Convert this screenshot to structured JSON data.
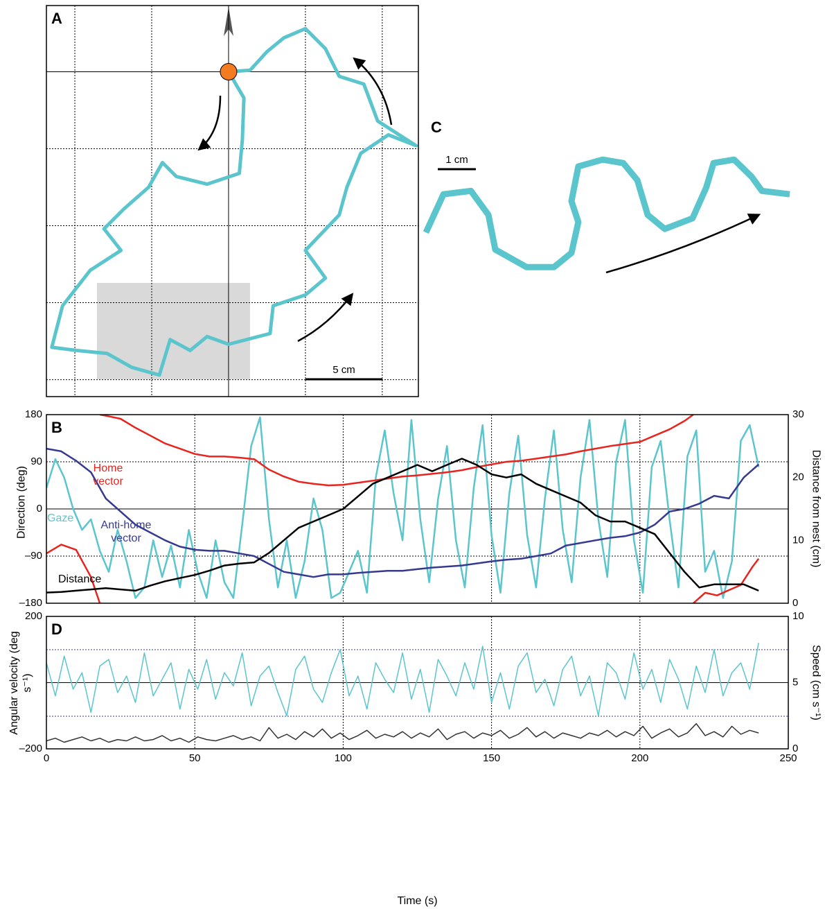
{
  "chart_data": [
    {
      "type": "path",
      "panel": "A",
      "color": "#5bc5cd",
      "xlim": [
        -11.85,
        12.35
      ],
      "ylim": [
        -21.1,
        4.3
      ],
      "xticks": [
        -10,
        -5,
        0,
        5,
        10
      ],
      "yticks": [
        -20,
        -15,
        -10,
        -5,
        0
      ],
      "x": [
        0,
        1.0,
        0.9,
        0.7,
        -1.4,
        -3.4,
        -4.3,
        -5.2,
        -6.8,
        -8.1,
        -7.0,
        -9.0,
        -10.8,
        -11.5,
        -9.9,
        -7.9,
        -6.3,
        -4.5,
        -3.8,
        -2.5,
        -1.4,
        0,
        2.7,
        2.9,
        5.0,
        6.3,
        5.0,
        7.2,
        7.7,
        8.6,
        10.4,
        12.2,
        9.7,
        8.8,
        7.2,
        6.3,
        5.0,
        3.6,
        2.5,
        1.4,
        0
      ],
      "values": [
        0,
        -1.7,
        -4.4,
        -6.6,
        -7.3,
        -6.8,
        -5.9,
        -7.5,
        -8.9,
        -10.2,
        -11.6,
        -12.9,
        -15.2,
        -17.9,
        -18.1,
        -18.3,
        -19.2,
        -19.7,
        -17.4,
        -18.1,
        -17.2,
        -17.7,
        -17.0,
        -15.2,
        -14.5,
        -13.4,
        -11.6,
        -9.3,
        -7.5,
        -5.3,
        -4.1,
        -4.8,
        -3.2,
        -0.8,
        -0.3,
        1.5,
        2.8,
        2.2,
        1.3,
        0.1,
        0
      ],
      "nest": {
        "x": 0,
        "y": 0,
        "color": "#f47b20"
      },
      "scale_bar": {
        "label": "5 cm",
        "length": 5
      }
    },
    {
      "type": "path",
      "panel": "C",
      "color": "#5bc5cd",
      "xlim": [
        0,
        9.73
      ],
      "ylim": [
        0,
        3.64
      ],
      "x": [
        0.09,
        0.55,
        1.27,
        1.73,
        1.91,
        2.73,
        3.45,
        3.91,
        4.09,
        3.91,
        4.09,
        4.73,
        5.27,
        5.64,
        5.91,
        6.36,
        7.09,
        7.45,
        7.64,
        8.18,
        8.64,
        8.91,
        9.64
      ],
      "values": [
        1.18,
        2.18,
        2.27,
        1.64,
        0.73,
        0.27,
        0.27,
        0.64,
        1.45,
        2.0,
        2.91,
        3.09,
        3.0,
        2.55,
        1.64,
        1.27,
        1.55,
        2.36,
        3.0,
        3.09,
        2.64,
        2.27,
        2.18
      ],
      "scale_bar": {
        "label": "1 cm",
        "length": 1
      }
    },
    {
      "type": "line",
      "panel": "B",
      "ylabel": "Direction (deg)",
      "y2label": "Distance from nest (cm)",
      "xlim": [
        0,
        250
      ],
      "xticks": [
        0,
        50,
        100,
        150,
        200,
        250
      ],
      "ylim": [
        -180,
        180
      ],
      "yticks": [
        {
          "value": -180,
          "label": "–180"
        },
        {
          "value": -90,
          "label": "–90"
        },
        0,
        90,
        180
      ],
      "y2lim": [
        0,
        30
      ],
      "y2ticks": [
        0,
        10,
        20,
        30
      ],
      "series": [
        {
          "name": "Gaze",
          "color": "#5bc5cd",
          "x": [
            0,
            3,
            6,
            9,
            12,
            15,
            18,
            21,
            24,
            27,
            30,
            33,
            36,
            39,
            42,
            45,
            48,
            51,
            54,
            57,
            60,
            63,
            66,
            69,
            72,
            75,
            78,
            81,
            84,
            87,
            90,
            93,
            96,
            99,
            102,
            105,
            108,
            111,
            114,
            117,
            120,
            123,
            126,
            129,
            132,
            135,
            138,
            141,
            144,
            147,
            150,
            153,
            156,
            159,
            162,
            165,
            168,
            171,
            174,
            177,
            180,
            183,
            186,
            189,
            192,
            195,
            198,
            201,
            204,
            207,
            210,
            213,
            216,
            219,
            222,
            225,
            228,
            231,
            234,
            237,
            240
          ],
          "values": [
            40,
            95,
            60,
            0,
            -40,
            -20,
            -80,
            -120,
            -40,
            -100,
            -170,
            -150,
            -60,
            -130,
            -70,
            -150,
            -40,
            -120,
            -170,
            -60,
            -140,
            -170,
            -30,
            120,
            175,
            -20,
            -150,
            -60,
            -170,
            -100,
            20,
            -40,
            -170,
            -160,
            -120,
            -80,
            -160,
            60,
            150,
            30,
            -60,
            170,
            -20,
            -140,
            20,
            120,
            -60,
            -150,
            40,
            160,
            -50,
            -160,
            30,
            140,
            -50,
            -150,
            20,
            150,
            -40,
            -140,
            60,
            170,
            -20,
            -130,
            90,
            170,
            -60,
            -160,
            80,
            130,
            -20,
            -150,
            100,
            150,
            -120,
            -80,
            -170,
            -100,
            130,
            160,
            80
          ]
        },
        {
          "name": "Anti-home vector",
          "color": "#35398f",
          "x": [
            0,
            5,
            10,
            15,
            20,
            25,
            30,
            35,
            40,
            45,
            50,
            55,
            60,
            65,
            70,
            75,
            80,
            85,
            90,
            95,
            100,
            105,
            110,
            115,
            120,
            125,
            130,
            135,
            140,
            145,
            150,
            155,
            160,
            165,
            170,
            175,
            180,
            185,
            190,
            195,
            200,
            205,
            210,
            215,
            220,
            225,
            230,
            235,
            240
          ],
          "values": [
            115,
            110,
            92,
            70,
            20,
            -5,
            -30,
            -45,
            -60,
            -72,
            -78,
            -80,
            -80,
            -85,
            -90,
            -105,
            -120,
            -125,
            -130,
            -125,
            -125,
            -122,
            -120,
            -118,
            -118,
            -115,
            -112,
            -110,
            -108,
            -104,
            -100,
            -97,
            -95,
            -90,
            -85,
            -70,
            -65,
            -60,
            -55,
            -52,
            -45,
            -30,
            -5,
            0,
            10,
            25,
            20,
            60,
            85
          ]
        },
        {
          "name": "Home vector",
          "color": "#e8241f",
          "x": [
            0,
            5,
            10,
            15,
            18,
            18,
            18,
            20,
            25,
            30,
            35,
            40,
            45,
            50,
            55,
            60,
            65,
            70,
            75,
            80,
            85,
            90,
            95,
            100,
            105,
            110,
            115,
            120,
            125,
            130,
            135,
            140,
            145,
            150,
            155,
            160,
            165,
            170,
            175,
            180,
            185,
            190,
            195,
            200,
            205,
            210,
            215,
            218,
            218,
            218,
            222,
            226,
            230,
            234,
            238,
            240
          ],
          "values": [
            -85,
            -68,
            -78,
            -130,
            -180,
            null,
            180,
            178,
            172,
            155,
            140,
            125,
            115,
            105,
            100,
            100,
            98,
            95,
            75,
            62,
            52,
            48,
            45,
            46,
            50,
            54,
            58,
            62,
            64,
            67,
            70,
            74,
            80,
            85,
            90,
            92,
            96,
            100,
            104,
            110,
            115,
            120,
            124,
            128,
            140,
            152,
            168,
            180,
            null,
            -180,
            -160,
            -165,
            -155,
            -145,
            -110,
            -95
          ]
        },
        {
          "name": "Distance",
          "color": "#000000",
          "axis": "y2",
          "x": [
            0,
            5,
            10,
            15,
            20,
            25,
            30,
            35,
            40,
            45,
            50,
            55,
            60,
            65,
            70,
            75,
            80,
            85,
            90,
            95,
            100,
            105,
            110,
            115,
            120,
            125,
            130,
            135,
            140,
            145,
            150,
            155,
            160,
            165,
            170,
            175,
            180,
            185,
            190,
            195,
            200,
            205,
            210,
            215,
            220,
            225,
            230,
            235,
            240
          ],
          "values": [
            1.7,
            1.8,
            2,
            2.2,
            2.4,
            2.2,
            2,
            2.8,
            3.5,
            4,
            4.5,
            5.2,
            6,
            6.3,
            6.5,
            8,
            10,
            12,
            13,
            14,
            15,
            17,
            19,
            20,
            21,
            22,
            21,
            22,
            23,
            22,
            20.5,
            20,
            20.5,
            19,
            18,
            17,
            16,
            14,
            13,
            13,
            12,
            11,
            8,
            5,
            2.5,
            3,
            3,
            3,
            2
          ]
        }
      ]
    },
    {
      "type": "line",
      "panel": "D",
      "xlabel": "Time (s)",
      "ylabel": "Angular velocity (deg s⁻¹)",
      "y2label": "Speed (cm s⁻¹)",
      "xlim": [
        0,
        250
      ],
      "xticks": [
        0,
        50,
        100,
        150,
        200,
        250
      ],
      "ylim": [
        -200,
        200
      ],
      "yticks": [
        {
          "value": -200,
          "label": "–200"
        },
        200
      ],
      "y2lim": [
        0,
        10
      ],
      "y2ticks": [
        0,
        5,
        10
      ],
      "x": [
        0,
        3,
        6,
        9,
        12,
        15,
        18,
        21,
        24,
        27,
        30,
        33,
        36,
        39,
        42,
        45,
        48,
        51,
        54,
        57,
        60,
        63,
        66,
        69,
        72,
        75,
        78,
        81,
        84,
        87,
        90,
        93,
        96,
        99,
        102,
        105,
        108,
        111,
        114,
        117,
        120,
        123,
        126,
        129,
        132,
        135,
        138,
        141,
        144,
        147,
        150,
        153,
        156,
        159,
        162,
        165,
        168,
        171,
        174,
        177,
        180,
        183,
        186,
        189,
        192,
        195,
        198,
        201,
        204,
        207,
        210,
        213,
        216,
        219,
        222,
        225,
        228,
        231,
        234,
        237,
        240
      ],
      "series": [
        {
          "color": "#5bc5cd",
          "values": [
            60,
            -40,
            80,
            -20,
            30,
            -90,
            50,
            70,
            -30,
            20,
            -60,
            90,
            -40,
            10,
            60,
            -80,
            40,
            -20,
            70,
            -50,
            30,
            -10,
            90,
            -70,
            20,
            50,
            -30,
            -100,
            40,
            80,
            -20,
            -60,
            30,
            100,
            -40,
            20,
            -80,
            60,
            10,
            -30,
            90,
            -50,
            40,
            -90,
            70,
            20,
            -40,
            60,
            -20,
            110,
            -60,
            30,
            -80,
            50,
            90,
            -30,
            10,
            -70,
            40,
            80,
            -40,
            20,
            -100,
            60,
            30,
            -50,
            90,
            -20,
            40,
            -60,
            70,
            10,
            -80,
            50,
            -30,
            100,
            -40,
            30,
            60,
            -20,
            120
          ]
        },
        {
          "color": "#333333",
          "axis": "y2",
          "values": [
            0.6,
            0.8,
            0.5,
            0.7,
            0.9,
            0.6,
            0.8,
            0.5,
            0.7,
            0.6,
            0.9,
            0.6,
            0.7,
            1.0,
            0.6,
            0.8,
            0.5,
            0.9,
            0.7,
            0.6,
            0.8,
            1.0,
            0.7,
            0.9,
            0.6,
            1.6,
            0.8,
            1.1,
            0.7,
            1.3,
            0.9,
            1.5,
            0.8,
            1.2,
            0.7,
            1.0,
            1.4,
            0.8,
            1.1,
            0.9,
            1.3,
            0.8,
            1.2,
            0.9,
            1.5,
            0.7,
            1.1,
            1.3,
            0.8,
            1.2,
            1.0,
            1.4,
            0.8,
            1.1,
            1.6,
            0.9,
            1.3,
            0.8,
            1.2,
            1.0,
            0.8,
            1.2,
            1.0,
            1.4,
            0.9,
            1.3,
            1.0,
            1.7,
            0.8,
            1.2,
            1.5,
            0.9,
            1.2,
            1.9,
            1.0,
            1.3,
            0.9,
            1.7,
            1.1,
            1.4,
            1.2
          ]
        }
      ]
    }
  ]
}
